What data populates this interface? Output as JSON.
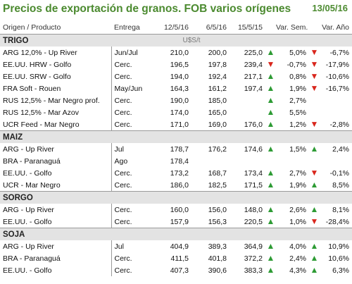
{
  "header": {
    "title": "Precios de exportación de granos. FOB varios orígenes",
    "date": "13/05/16"
  },
  "columns": [
    "Origen / Producto",
    "Entrega",
    "12/5/16",
    "6/5/16",
    "15/5/15",
    "Var. Sem.",
    "Var. Año"
  ],
  "units": "U$S/t",
  "arrows": {
    "up": "▲",
    "down": "▼"
  },
  "colors": {
    "title": "#4b8a2f",
    "up": "#2d9b34",
    "down": "#d9261c",
    "section_bg": "#e3e3e3"
  },
  "sections": [
    {
      "name": "TRIGO",
      "rows": [
        {
          "product": "ARG 12,0% - Up River",
          "delivery": "Jun/Jul",
          "v1": "210,0",
          "v2": "200,0",
          "v3": "225,0",
          "arrow_sem": "up",
          "var_sem": "5,0%",
          "arrow_year": "down",
          "var_year": "-6,7%"
        },
        {
          "product": "EE.UU. HRW - Golfo",
          "delivery": "Cerc.",
          "v1": "196,5",
          "v2": "197,8",
          "v3": "239,4",
          "arrow_sem": "down",
          "var_sem": "-0,7%",
          "arrow_year": "down",
          "var_year": "-17,9%"
        },
        {
          "product": "EE.UU. SRW - Golfo",
          "delivery": "Cerc.",
          "v1": "194,0",
          "v2": "192,4",
          "v3": "217,1",
          "arrow_sem": "up",
          "var_sem": "0,8%",
          "arrow_year": "down",
          "var_year": "-10,6%"
        },
        {
          "product": "FRA Soft - Rouen",
          "delivery": "May/Jun",
          "v1": "164,3",
          "v2": "161,2",
          "v3": "197,4",
          "arrow_sem": "up",
          "var_sem": "1,9%",
          "arrow_year": "down",
          "var_year": "-16,7%"
        },
        {
          "product": "RUS 12,5% - Mar Negro prof.",
          "delivery": "Cerc.",
          "v1": "190,0",
          "v2": "185,0",
          "v3": "",
          "arrow_sem": "up",
          "var_sem": "2,7%",
          "arrow_year": "",
          "var_year": ""
        },
        {
          "product": "RUS 12,5% - Mar Azov",
          "delivery": "Cerc.",
          "v1": "174,0",
          "v2": "165,0",
          "v3": "",
          "arrow_sem": "up",
          "var_sem": "5,5%",
          "arrow_year": "",
          "var_year": ""
        },
        {
          "product": "UCR Feed - Mar Negro",
          "delivery": "Cerc.",
          "v1": "171,0",
          "v2": "169,0",
          "v3": "176,0",
          "arrow_sem": "up",
          "var_sem": "1,2%",
          "arrow_year": "down",
          "var_year": "-2,8%"
        }
      ]
    },
    {
      "name": "MAIZ",
      "rows": [
        {
          "product": "ARG - Up River",
          "delivery": "Jul",
          "v1": "178,7",
          "v2": "176,2",
          "v3": "174,6",
          "arrow_sem": "up",
          "var_sem": "1,5%",
          "arrow_year": "up",
          "var_year": "2,4%"
        },
        {
          "product": "BRA - Paranaguá",
          "delivery": "Ago",
          "v1": "178,4",
          "v2": "",
          "v3": "",
          "arrow_sem": "",
          "var_sem": "",
          "arrow_year": "",
          "var_year": ""
        },
        {
          "product": "EE.UU. - Golfo",
          "delivery": "Cerc.",
          "v1": "173,2",
          "v2": "168,7",
          "v3": "173,4",
          "arrow_sem": "up",
          "var_sem": "2,7%",
          "arrow_year": "down",
          "var_year": "-0,1%"
        },
        {
          "product": "UCR - Mar Negro",
          "delivery": "Cerc.",
          "v1": "186,0",
          "v2": "182,5",
          "v3": "171,5",
          "arrow_sem": "up",
          "var_sem": "1,9%",
          "arrow_year": "up",
          "var_year": "8,5%"
        }
      ]
    },
    {
      "name": "SORGO",
      "rows": [
        {
          "product": "ARG - Up River",
          "delivery": "Cerc.",
          "v1": "160,0",
          "v2": "156,0",
          "v3": "148,0",
          "arrow_sem": "up",
          "var_sem": "2,6%",
          "arrow_year": "up",
          "var_year": "8,1%"
        },
        {
          "product": "EE.UU. - Golfo",
          "delivery": "Cerc.",
          "v1": "157,9",
          "v2": "156,3",
          "v3": "220,5",
          "arrow_sem": "up",
          "var_sem": "1,0%",
          "arrow_year": "down",
          "var_year": "-28,4%"
        }
      ]
    },
    {
      "name": "SOJA",
      "rows": [
        {
          "product": "ARG - Up River",
          "delivery": "Jul",
          "v1": "404,9",
          "v2": "389,3",
          "v3": "364,9",
          "arrow_sem": "up",
          "var_sem": "4,0%",
          "arrow_year": "up",
          "var_year": "10,9%"
        },
        {
          "product": "BRA - Paranaguá",
          "delivery": "Cerc.",
          "v1": "411,5",
          "v2": "401,8",
          "v3": "372,2",
          "arrow_sem": "up",
          "var_sem": "2,4%",
          "arrow_year": "up",
          "var_year": "10,6%"
        },
        {
          "product": "EE.UU. - Golfo",
          "delivery": "Cerc.",
          "v1": "407,3",
          "v2": "390,6",
          "v3": "383,3",
          "arrow_sem": "up",
          "var_sem": "4,3%",
          "arrow_year": "up",
          "var_year": "6,3%"
        }
      ]
    }
  ]
}
